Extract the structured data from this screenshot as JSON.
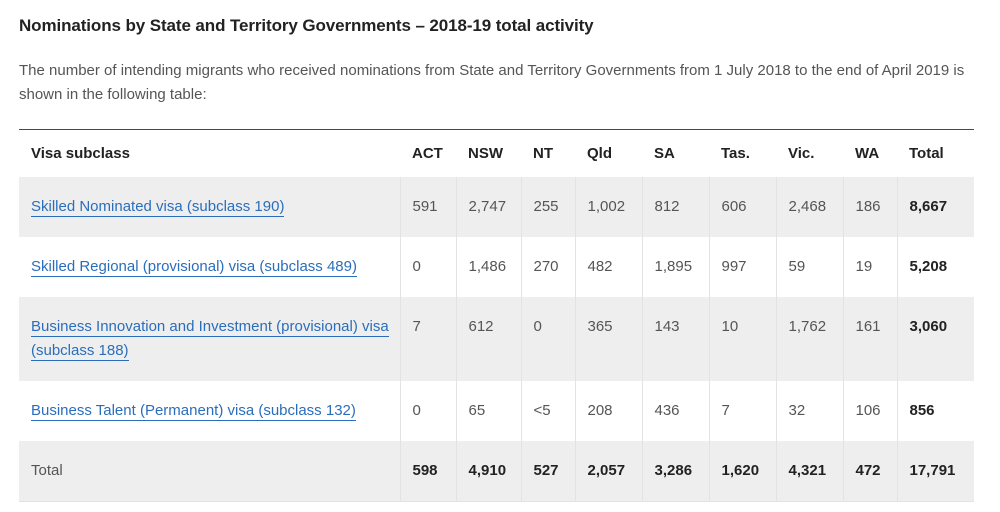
{
  "heading": "Nominations by State and Territory Governments – 2018-19 total activity",
  "intro": "The number of intending migrants who received nominations from State and Territory Governments from 1 July 2018 to the end of April 2019 is shown in the following table:",
  "table": {
    "headers": [
      "Visa subclass",
      "ACT",
      "NSW",
      "NT",
      "Qld",
      "SA",
      "Tas.",
      "Vic.",
      "WA",
      "Total"
    ],
    "rows": [
      {
        "label": "Skilled Nominated visa (subclass 190)",
        "values": [
          "591",
          "2,747",
          "255",
          "1,002",
          "812",
          "606",
          "2,468",
          "186"
        ],
        "total": "8,667"
      },
      {
        "label": "Skilled Regional (provisional) visa (subclass 489)",
        "values": [
          "0",
          "1,486",
          "270",
          "482",
          "1,895",
          "997",
          "59",
          "19"
        ],
        "total": "5,208"
      },
      {
        "label": "Business Innovation and Investment (provisional) visa (subclass 188)",
        "values": [
          "7",
          "612",
          "0",
          "365",
          "143",
          "10",
          "1,762",
          "161"
        ],
        "total": "3,060"
      },
      {
        "label": "Business Talent (Permanent) visa (subclass 132)",
        "values": [
          "0",
          "65",
          "<5",
          "208",
          "436",
          "7",
          "32",
          "106"
        ],
        "total": "856"
      }
    ],
    "total_row": {
      "label": "Total",
      "values": [
        "598",
        "4,910",
        "527",
        "2,057",
        "3,286",
        "1,620",
        "4,321",
        "472"
      ],
      "total": "17,791"
    }
  },
  "colors": {
    "link": "#2a6ebb",
    "shade": "#eeeeee",
    "rule": "#3d4b5c"
  }
}
